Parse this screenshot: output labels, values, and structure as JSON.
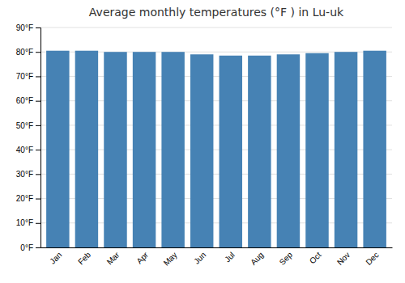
{
  "chart_data": {
    "type": "bar",
    "title": "Average monthly temperatures (°F ) in Lu-uk",
    "categories": [
      "Jan",
      "Feb",
      "Mar",
      "Apr",
      "May",
      "Jun",
      "Jul",
      "Aug",
      "Sep",
      "Oct",
      "Nov",
      "Dec"
    ],
    "values": [
      80.5,
      80.5,
      80.0,
      80.0,
      80.0,
      79.0,
      78.5,
      78.5,
      79.0,
      79.5,
      80.0,
      80.5
    ],
    "ylim": [
      0,
      90
    ],
    "yticks": [
      {
        "value": 0,
        "label": "0°F"
      },
      {
        "value": 10,
        "label": "10°F"
      },
      {
        "value": 20,
        "label": "20°F"
      },
      {
        "value": 30,
        "label": "30°F"
      },
      {
        "value": 40,
        "label": "40°F"
      },
      {
        "value": 50,
        "label": "50°F"
      },
      {
        "value": 60,
        "label": "60°F"
      },
      {
        "value": 70,
        "label": "70°F"
      },
      {
        "value": 80,
        "label": "80°F"
      },
      {
        "value": 90,
        "label": "90°F"
      }
    ],
    "grid": true
  }
}
